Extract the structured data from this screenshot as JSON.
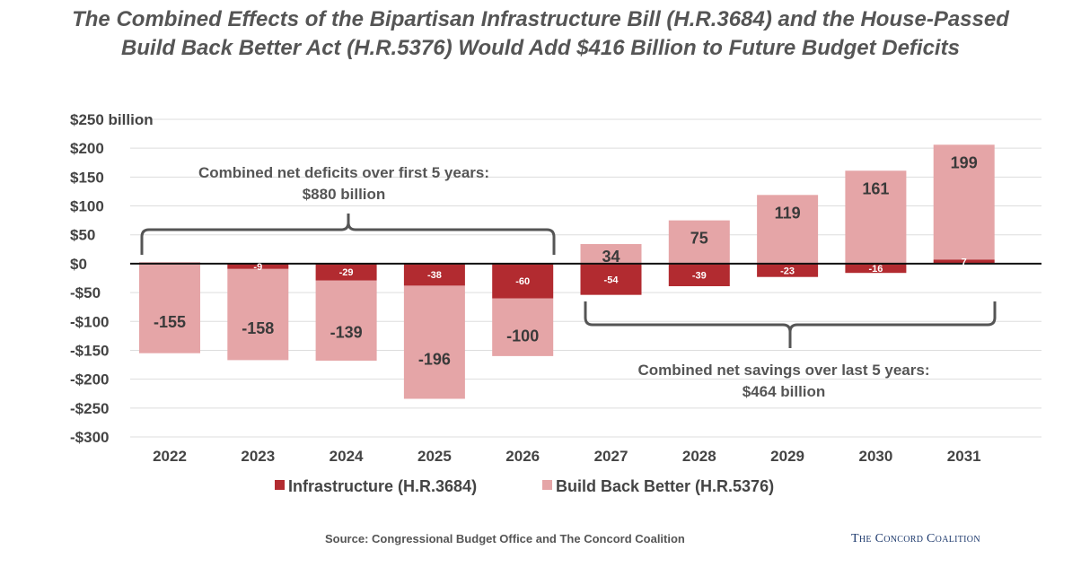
{
  "title": {
    "line1": "The Combined Effects of the Bipartisan Infrastructure Bill (H.R.3684) and the House-Passed",
    "line2": "Build Back Better Act (H.R.5376) Would Add $416 Billion to Future Budget Deficits"
  },
  "source": "Source: Congressional Budget Office and The Concord Coalition",
  "logo": "The Concord Coalition",
  "colors": {
    "infrastructure": "#b22b30",
    "bbb": "#e5a5a7",
    "axis": "#111111",
    "grid": "#dddddd"
  },
  "chart_data": {
    "type": "bar",
    "stacked": true,
    "ylim": [
      -300,
      250
    ],
    "ytick_labels": [
      "$250 billion",
      "$200",
      "$150",
      "$100",
      "$50",
      "$0",
      "-$50",
      "-$100",
      "-$150",
      "-$200",
      "-$250",
      "-$300"
    ],
    "ytick_values": [
      250,
      200,
      150,
      100,
      50,
      0,
      -50,
      -100,
      -150,
      -200,
      -250,
      -300
    ],
    "categories": [
      "2022",
      "2023",
      "2024",
      "2025",
      "2026",
      "2027",
      "2028",
      "2029",
      "2030",
      "2031"
    ],
    "series": [
      {
        "name": "Infrastructure (H.R.3684)",
        "values": [
          2,
          -9,
          -29,
          -38,
          -60,
          -54,
          -39,
          -23,
          -16,
          7
        ],
        "labels": [
          "",
          "-9",
          "-29",
          "-38",
          "-60",
          "-54",
          "-39",
          "-23",
          "-16",
          "7"
        ]
      },
      {
        "name": "Build Back Better (H.R.5376)",
        "values": [
          -155,
          -158,
          -139,
          -196,
          -100,
          34,
          75,
          119,
          161,
          199
        ],
        "labels": [
          "-155",
          "-158",
          "-139",
          "-196",
          "-100",
          "34",
          "75",
          "119",
          "161",
          "199"
        ]
      }
    ],
    "annotations": {
      "deficits_line1": "Combined net deficits over first 5 years:",
      "deficits_line2": "$880 billion",
      "savings_line1": "Combined net savings over last 5 years:",
      "savings_line2": "$464 billion"
    }
  }
}
